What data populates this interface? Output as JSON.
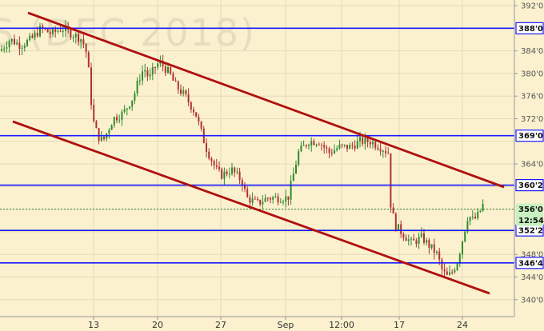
{
  "chart_data": {
    "type": "candlestick",
    "watermark": "S (DEC 2018)",
    "y_axis": {
      "ticks": [
        "340'0",
        "344'0",
        "348'0",
        "352'0",
        "356'0",
        "360'0",
        "364'0",
        "368'0",
        "372'0",
        "376'0",
        "380'0",
        "384'0",
        "388'0",
        "392'0"
      ],
      "tick_values": [
        340,
        344,
        348,
        352,
        356,
        360,
        364,
        368,
        372,
        376,
        380,
        384,
        388,
        392
      ],
      "range": [
        337.0,
        393.0
      ]
    },
    "x_axis": {
      "labels": [
        "13",
        "20",
        "27",
        "Sep",
        "12:00",
        "17",
        "24"
      ]
    },
    "levels": [
      {
        "label": "388'0",
        "value": 388.0
      },
      {
        "label": "369'0",
        "value": 369.0
      },
      {
        "label": "360'2",
        "value": 360.25
      },
      {
        "label": "352'2",
        "value": 352.25
      },
      {
        "label": "346'4",
        "value": 346.5
      }
    ],
    "current_price": {
      "label": "356'0",
      "value": 356.0
    },
    "time_badge": "12:54",
    "channel_lines": [
      {
        "name": "upper",
        "from": {
          "x": 0.0,
          "y": 395.4
        },
        "to": {
          "x": 1.0,
          "y": 358.9
        }
      },
      {
        "name": "lower",
        "from": {
          "x": 0.0,
          "y": 371.4
        },
        "to": {
          "x": 1.0,
          "y": 340.0
        }
      }
    ],
    "price_path": [
      [
        0.0,
        384
      ],
      [
        0.02,
        386
      ],
      [
        0.04,
        385
      ],
      [
        0.06,
        386
      ],
      [
        0.08,
        388
      ],
      [
        0.1,
        387
      ],
      [
        0.12,
        388
      ],
      [
        0.14,
        387
      ],
      [
        0.16,
        386
      ],
      [
        0.17,
        383
      ],
      [
        0.18,
        372
      ],
      [
        0.19,
        369
      ],
      [
        0.2,
        368
      ],
      [
        0.21,
        370
      ],
      [
        0.22,
        372
      ],
      [
        0.24,
        373
      ],
      [
        0.26,
        376
      ],
      [
        0.27,
        379
      ],
      [
        0.28,
        381
      ],
      [
        0.29,
        379
      ],
      [
        0.3,
        381
      ],
      [
        0.31,
        382
      ],
      [
        0.33,
        380
      ],
      [
        0.34,
        378
      ],
      [
        0.36,
        376
      ],
      [
        0.38,
        373
      ],
      [
        0.39,
        370
      ],
      [
        0.4,
        367
      ],
      [
        0.41,
        365
      ],
      [
        0.42,
        363
      ],
      [
        0.43,
        362
      ],
      [
        0.45,
        363
      ],
      [
        0.47,
        361
      ],
      [
        0.48,
        358
      ],
      [
        0.5,
        357
      ],
      [
        0.52,
        358
      ],
      [
        0.54,
        358
      ],
      [
        0.56,
        358
      ],
      [
        0.57,
        362
      ],
      [
        0.58,
        366
      ],
      [
        0.6,
        368
      ],
      [
        0.62,
        368
      ],
      [
        0.64,
        366
      ],
      [
        0.66,
        367
      ],
      [
        0.68,
        367
      ],
      [
        0.7,
        368
      ],
      [
        0.72,
        368
      ],
      [
        0.74,
        367
      ],
      [
        0.755,
        366
      ],
      [
        0.76,
        356
      ],
      [
        0.77,
        353
      ],
      [
        0.78,
        352
      ],
      [
        0.8,
        350
      ],
      [
        0.82,
        351
      ],
      [
        0.84,
        349
      ],
      [
        0.85,
        348
      ],
      [
        0.86,
        345
      ],
      [
        0.87,
        344
      ],
      [
        0.88,
        345
      ],
      [
        0.89,
        347
      ],
      [
        0.9,
        351
      ],
      [
        0.91,
        355
      ],
      [
        0.92,
        354
      ],
      [
        0.93,
        355
      ],
      [
        0.94,
        357
      ]
    ]
  }
}
